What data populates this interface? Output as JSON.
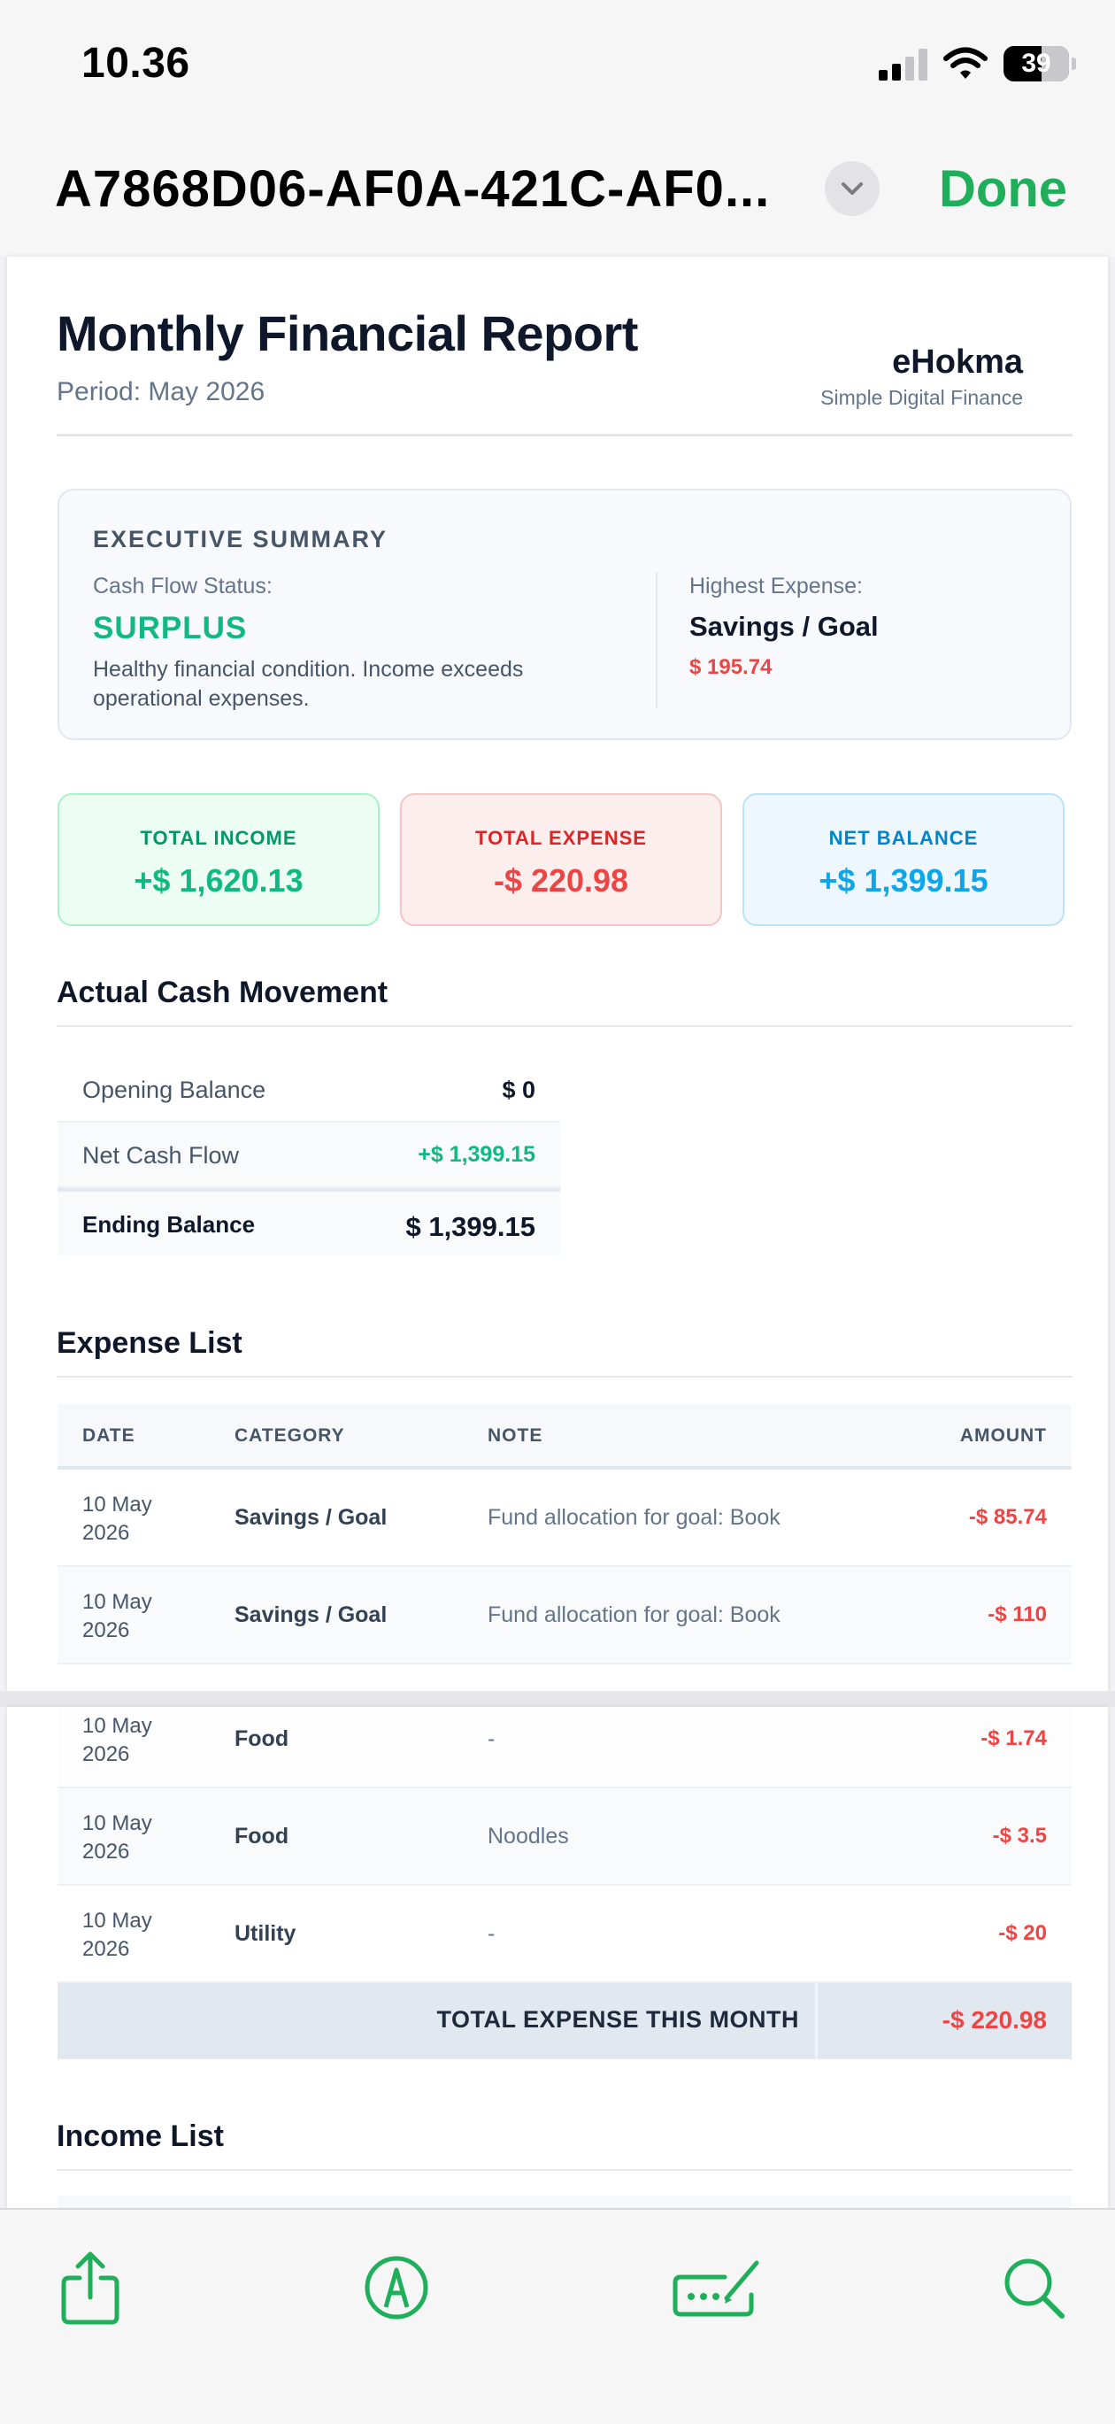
{
  "status_bar": {
    "time": "10.36",
    "battery": "39",
    "icons": [
      "signal-icon",
      "wifi-icon",
      "battery-icon"
    ]
  },
  "nav": {
    "title": "A7868D06-AF0A-421C-AF0...",
    "done_label": "Done",
    "accent_color": "#1fae5a"
  },
  "report": {
    "title": "Monthly Financial Report",
    "period": "Period: May 2026",
    "brand": "eHokma",
    "tagline": "Simple Digital Finance"
  },
  "executive_summary": {
    "heading": "EXECUTIVE SUMMARY",
    "cash_flow_label": "Cash Flow Status:",
    "status": "SURPLUS",
    "description": "Healthy financial condition. Income exceeds operational expenses.",
    "highest_label": "Highest Expense:",
    "highest_category": "Savings / Goal",
    "highest_amount": "$ 195.74"
  },
  "cards": {
    "income": {
      "label": "TOTAL INCOME",
      "value": "+$ 1,620.13"
    },
    "expense": {
      "label": "TOTAL EXPENSE",
      "value": "-$ 220.98"
    },
    "net": {
      "label": "NET BALANCE",
      "value": "+$ 1,399.15"
    }
  },
  "cash_movement": {
    "title": "Actual Cash Movement",
    "rows": [
      {
        "label": "Opening Balance",
        "value": "$ 0"
      },
      {
        "label": "Net Cash Flow",
        "value": "+$ 1,399.15"
      },
      {
        "label": "Ending Balance",
        "value": "$ 1,399.15"
      }
    ]
  },
  "expense_list": {
    "title": "Expense List",
    "headers": {
      "date": "DATE",
      "category": "CATEGORY",
      "note": "NOTE",
      "amount": "AMOUNT"
    },
    "rows": [
      {
        "date": "10 May 2026",
        "category": "Savings / Goal",
        "note": "Fund allocation for goal: Book",
        "amount": "-$ 85.74"
      },
      {
        "date": "10 May 2026",
        "category": "Savings / Goal",
        "note": "Fund allocation for goal: Book",
        "amount": "-$ 110"
      },
      {
        "date": "10 May 2026",
        "category": "Food",
        "note": "-",
        "amount": "-$ 1.74"
      },
      {
        "date": "10 May 2026",
        "category": "Food",
        "note": "Noodles",
        "amount": "-$ 3.5"
      },
      {
        "date": "10 May 2026",
        "category": "Utility",
        "note": "-",
        "amount": "-$ 20"
      }
    ],
    "total_label": "TOTAL EXPENSE THIS MONTH",
    "total_value": "-$ 220.98"
  },
  "income_list": {
    "title": "Income List"
  },
  "toolbar": {
    "items": [
      "share-icon",
      "markup-icon",
      "signature-icon",
      "search-icon"
    ]
  }
}
